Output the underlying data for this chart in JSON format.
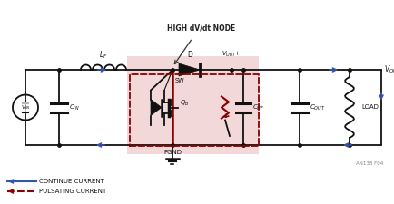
{
  "bg_color": "#ffffff",
  "shade_color": "#e8b8b8",
  "shade_alpha": 0.55,
  "continue_color": "#3355aa",
  "pulsating_color": "#8b0000",
  "wire_color": "#111111",
  "annotation_note": "AN138 F04",
  "annotation_text": "HIGH dV/dt NODE",
  "legend_continue": "CONTINUE CURRENT",
  "legend_pulsating": "PULSATING CURRENT",
  "vout_label": "V",
  "vin_label": "V"
}
